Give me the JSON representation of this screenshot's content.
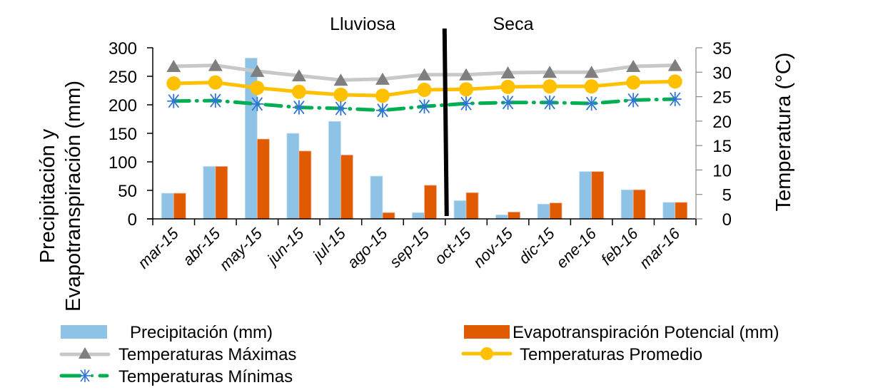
{
  "chart_data": {
    "type": "bar",
    "title": "",
    "categories": [
      "mar-15",
      "abr-15",
      "may-15",
      "jun-15",
      "jul-15",
      "ago-15",
      "sep-15",
      "oct-15",
      "nov-15",
      "dic-15",
      "ene-16",
      "feb-16",
      "mar-16"
    ],
    "ylabel": "Precipitación y Evapotranspiración (mm)",
    "y2label": "Temperatura (°C)",
    "xlabel": "",
    "ylim": [
      0,
      300
    ],
    "y2lim": [
      0,
      35
    ],
    "yticks": [
      "0",
      "50",
      "100",
      "150",
      "200",
      "250",
      "300"
    ],
    "y2ticks": [
      "0",
      "5",
      "10",
      "15",
      "20",
      "25",
      "30",
      "35"
    ],
    "grid": false,
    "legend_position": "bottom",
    "annotations": {
      "season_left": "Lluviosa",
      "season_right": "Seca",
      "divider_between": [
        "sep-15",
        "oct-15"
      ]
    },
    "series": [
      {
        "name": "Precipitación (mm)",
        "type": "bar",
        "axis": "left",
        "color": "#8fc3e6",
        "values": [
          45,
          92,
          282,
          150,
          171,
          75,
          11,
          32,
          7,
          26,
          83,
          51,
          29
        ]
      },
      {
        "name": "Evapotranspiración Potencial (mm)",
        "type": "bar",
        "axis": "left",
        "color": "#e05a00",
        "values": [
          45,
          92,
          140,
          119,
          112,
          11,
          59,
          46,
          12,
          28,
          83,
          51,
          29
        ]
      },
      {
        "name": "Temperaturas Máximas",
        "type": "line",
        "axis": "right",
        "color": "#c8c8c8",
        "marker": "triangle",
        "marker_color": "#7f7f7f",
        "values": [
          31.2,
          31.4,
          30.2,
          29.3,
          28.4,
          28.6,
          29.5,
          29.5,
          29.9,
          30.0,
          30.0,
          31.2,
          31.4
        ]
      },
      {
        "name": "Temperaturas Promedio",
        "type": "line",
        "axis": "right",
        "color": "#ffc000",
        "marker": "circle",
        "marker_color": "#ffc000",
        "values": [
          27.7,
          27.9,
          26.8,
          26.0,
          25.4,
          25.2,
          26.4,
          26.5,
          27.0,
          27.1,
          27.1,
          27.9,
          28.1
        ]
      },
      {
        "name": "Temperaturas Mínimas",
        "type": "line",
        "axis": "right",
        "color": "#00b050",
        "marker": "asterisk",
        "marker_color": "#2e75d6",
        "dash": "dash-dot",
        "values": [
          24.1,
          24.2,
          23.5,
          22.8,
          22.6,
          22.2,
          23.0,
          23.6,
          23.8,
          23.8,
          23.6,
          24.3,
          24.5
        ]
      }
    ]
  }
}
